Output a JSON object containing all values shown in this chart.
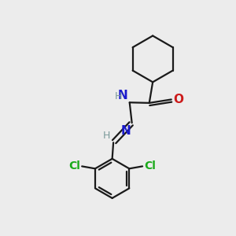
{
  "background_color": "#ececec",
  "bond_color": "#1a1a1a",
  "atom_colors": {
    "N": "#1a1acc",
    "O": "#cc1a1a",
    "Cl": "#1aaa1a",
    "H_label": "#7a9a9a"
  },
  "figsize": [
    3.0,
    3.0
  ],
  "dpi": 100
}
